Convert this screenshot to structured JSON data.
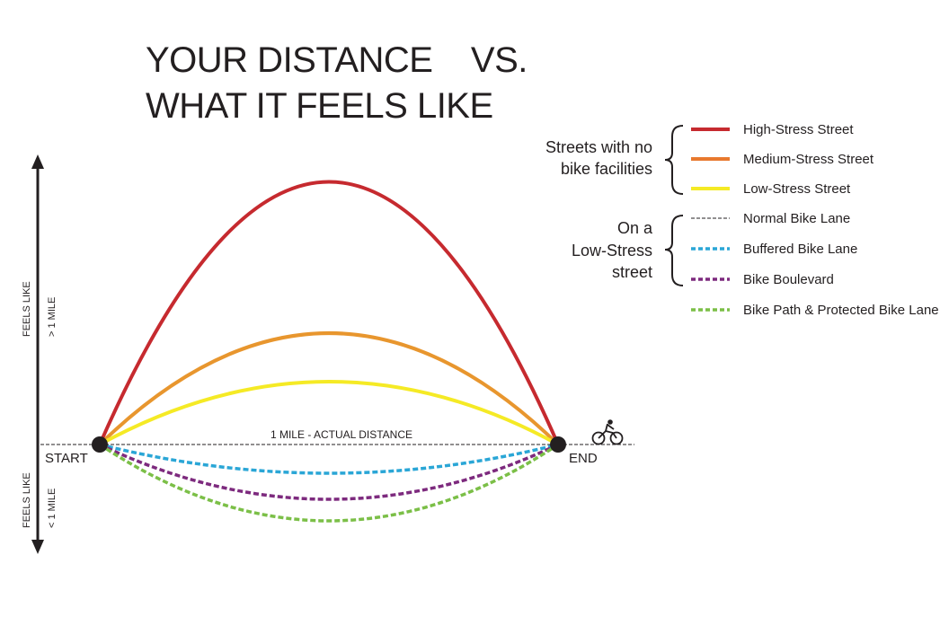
{
  "title": {
    "line1": "YOUR DISTANCE    VS.",
    "line2": "WHAT IT FEELS LIKE"
  },
  "axis": {
    "up_label_1": "FEELS LIKE",
    "up_label_2": "> 1 MILE",
    "down_label_1": "FEELS LIKE",
    "down_label_2": "< 1 MILE",
    "baseline_label": "1 MILE - ACTUAL DISTANCE",
    "start_label": "START",
    "end_label": "END",
    "icon": "cyclist-icon"
  },
  "legend": {
    "group1": [
      "Streets with no",
      "bike facilities"
    ],
    "group2": [
      "On a",
      "Low-Stress",
      "street"
    ],
    "items": [
      {
        "label": "High-Stress Street",
        "color": "#c62a2f",
        "style": "solid"
      },
      {
        "label": "Medium-Stress Street",
        "color": "#e8792e",
        "style": "solid"
      },
      {
        "label": "Low-Stress Street",
        "color": "#f5ea25",
        "style": "solid"
      },
      {
        "label": "Normal Bike Lane",
        "color": "#231f20",
        "style": "thin-dashed"
      },
      {
        "label": "Buffered Bike Lane",
        "color": "#2aa6d6",
        "style": "dotted"
      },
      {
        "label": "Bike Boulevard",
        "color": "#7d2a7e",
        "style": "dotted"
      },
      {
        "label": "Bike Path & Protected Bike Lane",
        "color": "#7bbf47",
        "style": "dotted"
      }
    ]
  }
}
